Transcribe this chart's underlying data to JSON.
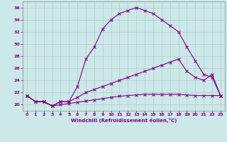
{
  "xlabel": "Windchill (Refroidissement éolien,°C)",
  "background_color": "#cce8e8",
  "line_color": "#800080",
  "xlim": [
    -0.5,
    23.5
  ],
  "ylim": [
    19.0,
    37.0
  ],
  "yticks": [
    20,
    22,
    24,
    26,
    28,
    30,
    32,
    34,
    36
  ],
  "xticks": [
    0,
    1,
    2,
    3,
    4,
    5,
    6,
    7,
    8,
    9,
    10,
    11,
    12,
    13,
    14,
    15,
    16,
    17,
    18,
    19,
    20,
    21,
    22,
    23
  ],
  "line1_x": [
    0,
    1,
    2,
    3,
    4,
    5,
    6,
    7,
    8,
    9,
    10,
    11,
    12,
    13,
    14,
    15,
    16,
    17,
    18,
    19,
    20,
    21,
    22,
    23
  ],
  "line1_y": [
    21.5,
    20.5,
    20.5,
    19.8,
    20.5,
    20.5,
    23.0,
    27.5,
    29.5,
    32.5,
    34.0,
    35.0,
    35.5,
    36.0,
    35.5,
    35.0,
    34.0,
    33.0,
    32.0,
    29.5,
    27.2,
    25.0,
    24.5,
    21.5
  ],
  "line2_x": [
    0,
    1,
    2,
    3,
    4,
    5,
    6,
    7,
    8,
    9,
    10,
    11,
    12,
    13,
    14,
    15,
    16,
    17,
    18,
    19,
    20,
    21,
    22,
    23
  ],
  "line2_y": [
    21.5,
    20.5,
    20.5,
    19.8,
    20.5,
    20.5,
    21.2,
    22.0,
    22.5,
    23.0,
    23.5,
    24.0,
    24.5,
    25.0,
    25.5,
    26.0,
    26.5,
    27.0,
    27.5,
    25.5,
    24.5,
    24.0,
    25.0,
    21.5
  ],
  "line3_x": [
    0,
    1,
    2,
    3,
    4,
    5,
    6,
    7,
    8,
    9,
    10,
    11,
    12,
    13,
    14,
    15,
    16,
    17,
    18,
    19,
    20,
    21,
    22,
    23
  ],
  "line3_y": [
    21.5,
    20.5,
    20.5,
    19.8,
    20.0,
    20.2,
    20.4,
    20.6,
    20.8,
    21.0,
    21.2,
    21.4,
    21.5,
    21.6,
    21.7,
    21.7,
    21.7,
    21.7,
    21.7,
    21.6,
    21.5,
    21.5,
    21.5,
    21.5
  ]
}
